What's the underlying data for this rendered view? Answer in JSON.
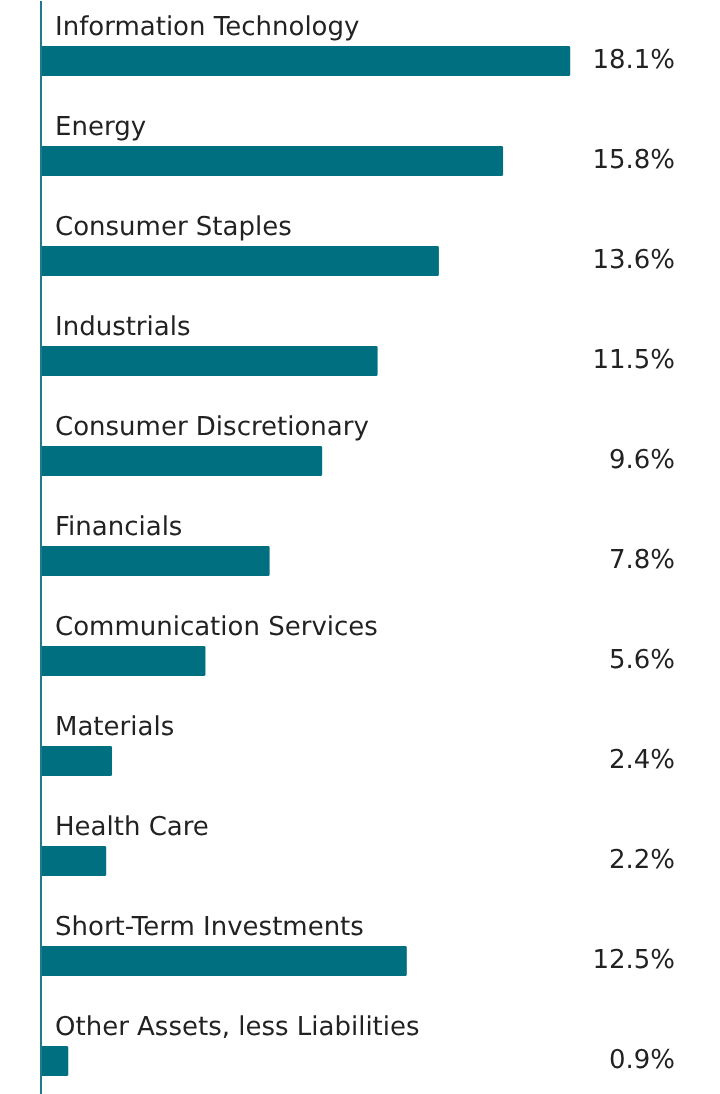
{
  "chart_data": {
    "type": "bar",
    "orientation": "horizontal",
    "categories": [
      "Information Technology",
      "Energy",
      "Consumer Staples",
      "Industrials",
      "Consumer Discretionary",
      "Financials",
      "Communication Services",
      "Materials",
      "Health Care",
      "Short-Term Investments",
      "Other Assets, less Liabilities"
    ],
    "values": [
      18.1,
      15.8,
      13.6,
      11.5,
      9.6,
      7.8,
      5.6,
      2.4,
      2.2,
      12.5,
      0.9
    ],
    "value_labels": [
      "18.1%",
      "15.8%",
      "13.6%",
      "11.5%",
      "9.6%",
      "7.8%",
      "5.6%",
      "2.4%",
      "2.2%",
      "12.5%",
      "0.9%"
    ],
    "color": "#006f7f",
    "grid": false
  }
}
